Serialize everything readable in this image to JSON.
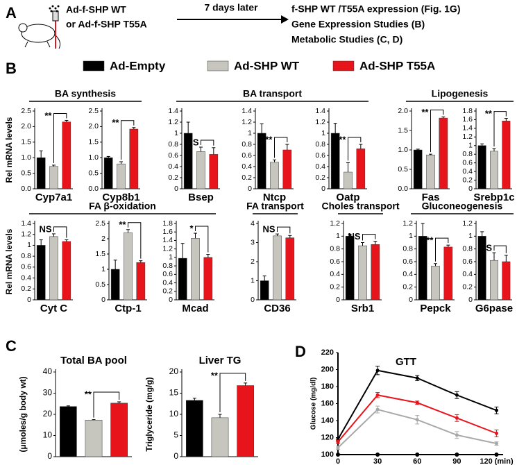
{
  "panel_a": {
    "label": "A",
    "virus": [
      "Ad-f-SHP WT",
      "or Ad-f-SHP T55A"
    ],
    "arrow_label": "7 days later",
    "outcomes": [
      "f-SHP WT /T55A expression (Fig. 1G)",
      "Gene Expression Studies (B)",
      "Metabolic Studies (C, D)"
    ]
  },
  "panel_b": {
    "label": "B",
    "ylabel": "Rel mRNA levels"
  },
  "panel_c": {
    "label": "C"
  },
  "panel_d": {
    "label": "D"
  },
  "legend": {
    "series": [
      {
        "name": "Ad-Empty",
        "color": "#000000"
      },
      {
        "name": "Ad-SHP WT",
        "color": "#c6c6bf"
      },
      {
        "name": "Ad-SHP T55A",
        "color": "#e8141b"
      }
    ]
  },
  "chart_data": [
    {
      "type": "bar",
      "group": "BA synthesis",
      "xlabel": "Cyp7a1",
      "values": [
        1.0,
        0.72,
        2.15
      ],
      "errors": [
        0.22,
        0.04,
        0.05
      ],
      "significance": "**",
      "ylim": [
        0,
        2.5
      ],
      "yticks": [
        {
          "value": 0,
          "label": "0.0"
        },
        0.5,
        {
          "value": 1,
          "label": "1.0"
        },
        1.5,
        {
          "value": 2,
          "label": "2.0"
        },
        2.5
      ]
    },
    {
      "type": "bar",
      "xlabel": "Cyp8b1",
      "values": [
        1.0,
        0.8,
        1.92
      ],
      "errors": [
        0.04,
        0.07,
        0.05
      ],
      "significance": "**",
      "ylim": [
        0,
        2.5
      ],
      "yticks": [
        {
          "value": 0,
          "label": "0.0"
        },
        0.5,
        {
          "value": 1,
          "label": "1.0"
        },
        1.5,
        {
          "value": 2,
          "label": "2.0"
        },
        2.5
      ]
    },
    {
      "type": "bar",
      "group": "BA transport",
      "xlabel": "Bsep",
      "values": [
        1.0,
        0.67,
        0.62
      ],
      "errors": [
        0.2,
        0.08,
        0.12
      ],
      "significance": "NS",
      "ylim": [
        0,
        1.4
      ],
      "yticks": [
        0,
        0.2,
        0.4,
        0.6,
        0.8,
        1,
        1.2,
        1.4
      ]
    },
    {
      "type": "bar",
      "xlabel": "Ntcp",
      "values": [
        1.0,
        0.48,
        0.7
      ],
      "errors": [
        0.17,
        0.04,
        0.1
      ],
      "significance": "**",
      "ylim": [
        0,
        1.4
      ],
      "yticks": [
        0,
        0.2,
        0.4,
        0.6,
        0.8,
        1,
        1.2,
        1.4
      ]
    },
    {
      "type": "bar",
      "xlabel": "Oatp",
      "values": [
        1.0,
        0.3,
        0.72
      ],
      "errors": [
        0.18,
        0.17,
        0.08
      ],
      "significance": "**",
      "ylim": [
        0,
        1.4
      ],
      "yticks": [
        0,
        0.2,
        0.4,
        0.6,
        0.8,
        1,
        1.2,
        1.4
      ]
    },
    {
      "type": "bar",
      "group": "Lipogenesis",
      "xlabel": "Fas",
      "values": [
        1.0,
        0.87,
        1.82
      ],
      "errors": [
        0.02,
        0.02,
        0.03
      ],
      "significance": "**",
      "ylim": [
        0,
        2
      ],
      "yticks": [
        {
          "value": 0,
          "label": "0.0"
        },
        0.5,
        {
          "value": 1,
          "label": "1.0"
        },
        1.5,
        {
          "value": 2,
          "label": "2.0"
        }
      ]
    },
    {
      "type": "bar",
      "xlabel": "Srebp1c",
      "values": [
        1.0,
        0.87,
        1.57
      ],
      "errors": [
        0.04,
        0.06,
        0.06
      ],
      "significance": "**",
      "ylim": [
        0,
        1.8
      ],
      "yticks": [
        0,
        0.2,
        0.4,
        0.6,
        0.8,
        1,
        1.2,
        1.4,
        1.6,
        1.8
      ]
    },
    {
      "type": "bar",
      "group": "FA β-oxidation",
      "xlabel": "Cyt C",
      "values": [
        1.0,
        1.16,
        1.07
      ],
      "errors": [
        0.1,
        0.05,
        0.03
      ],
      "significance": "NS",
      "ylim": [
        0,
        1.4
      ],
      "yticks": [
        0,
        0.2,
        0.4,
        0.6,
        0.8,
        1,
        1.2,
        1.4
      ]
    },
    {
      "type": "bar",
      "xlabel": "Ctp-1",
      "values": [
        1.0,
        2.2,
        1.22
      ],
      "errors": [
        0.3,
        0.1,
        0.06
      ],
      "significance": "**",
      "ylim": [
        0,
        2.5
      ],
      "yticks": [
        0,
        0.5,
        1,
        1.5,
        2,
        2.5
      ]
    },
    {
      "type": "bar",
      "xlabel": "Mcad",
      "values": [
        0.98,
        1.45,
        1.0
      ],
      "errors": [
        0.35,
        0.12,
        0.07
      ],
      "significance": "*",
      "ylim": [
        0,
        1.8
      ],
      "yticks": [
        0,
        0.2,
        0.4,
        0.6,
        0.8,
        1,
        1.2,
        1.4,
        1.6,
        1.8
      ]
    },
    {
      "type": "bar",
      "group": "FA transport",
      "xlabel": "CD36",
      "values": [
        1.0,
        3.35,
        3.25
      ],
      "errors": [
        0.25,
        0.1,
        0.12
      ],
      "significance": "NS",
      "ylim": [
        0,
        4
      ],
      "yticks": [
        0,
        1,
        2,
        3,
        4
      ]
    },
    {
      "type": "bar",
      "group": "Choles transport",
      "xlabel": "Srb1",
      "values": [
        1.0,
        0.85,
        0.87
      ],
      "errors": [
        0.03,
        0.05,
        0.05
      ],
      "significance": "NS",
      "ylim": [
        0,
        1.2
      ],
      "yticks": [
        0,
        0.2,
        0.4,
        0.6,
        0.8,
        1,
        1.2
      ]
    },
    {
      "type": "bar",
      "group": "Gluconeogenesis",
      "xlabel": "Pepck",
      "values": [
        1.0,
        0.53,
        0.83
      ],
      "errors": [
        0.2,
        0.04,
        0.03
      ],
      "significance": "**",
      "ylim": [
        0,
        1.2
      ],
      "yticks": [
        0,
        0.2,
        0.4,
        0.6,
        0.8,
        1,
        1.2
      ]
    },
    {
      "type": "bar",
      "xlabel": "G6pase",
      "values": [
        1.0,
        0.62,
        0.6
      ],
      "errors": [
        0.07,
        0.12,
        0.1
      ],
      "significance": "NS",
      "ylim": [
        0,
        1.2
      ],
      "yticks": [
        0,
        0.2,
        0.4,
        0.6,
        0.8,
        1,
        1.2
      ]
    },
    {
      "type": "bar",
      "title": "Total BA pool",
      "ylabel": "(μmoles/g body wt)",
      "values": [
        23.7,
        17.3,
        25.3
      ],
      "errors": [
        0.3,
        0.2,
        0.6
      ],
      "significance": "**",
      "ylim": [
        0,
        40
      ],
      "yticks": [
        0,
        10,
        20,
        30,
        40
      ]
    },
    {
      "type": "bar",
      "title": "Liver TG",
      "ylabel": "Triglyceride (mg/g)",
      "values": [
        13.3,
        9.2,
        16.8
      ],
      "errors": [
        0.5,
        0.8,
        0.6
      ],
      "significance": "**",
      "ylim": [
        0,
        20
      ],
      "yticks": [
        0,
        5,
        10,
        15,
        20
      ]
    },
    {
      "type": "line",
      "title": "GTT",
      "ylabel": "Glucose (mg/dl)",
      "x": [
        0,
        30,
        60,
        90,
        120
      ],
      "xlim": [
        0,
        125
      ],
      "xticks": [
        0,
        30,
        60,
        90,
        {
          "value": 120,
          "label": "120 (min)"
        }
      ],
      "ylim": [
        100,
        220
      ],
      "yticks": [
        100,
        120,
        140,
        160,
        180,
        200,
        220
      ],
      "series": [
        {
          "color": "#000000",
          "values": [
            118,
            199,
            190,
            170,
            152
          ],
          "errors": [
            2,
            5,
            3,
            4,
            4
          ]
        },
        {
          "color": "#e8141b",
          "values": [
            115,
            170,
            161,
            143,
            125
          ],
          "errors": [
            2,
            3,
            2,
            4,
            4
          ]
        },
        {
          "color": "#a8a8a8",
          "values": [
            108,
            153,
            141,
            123,
            113
          ],
          "errors": [
            2,
            4,
            5,
            4,
            2
          ]
        }
      ]
    }
  ]
}
